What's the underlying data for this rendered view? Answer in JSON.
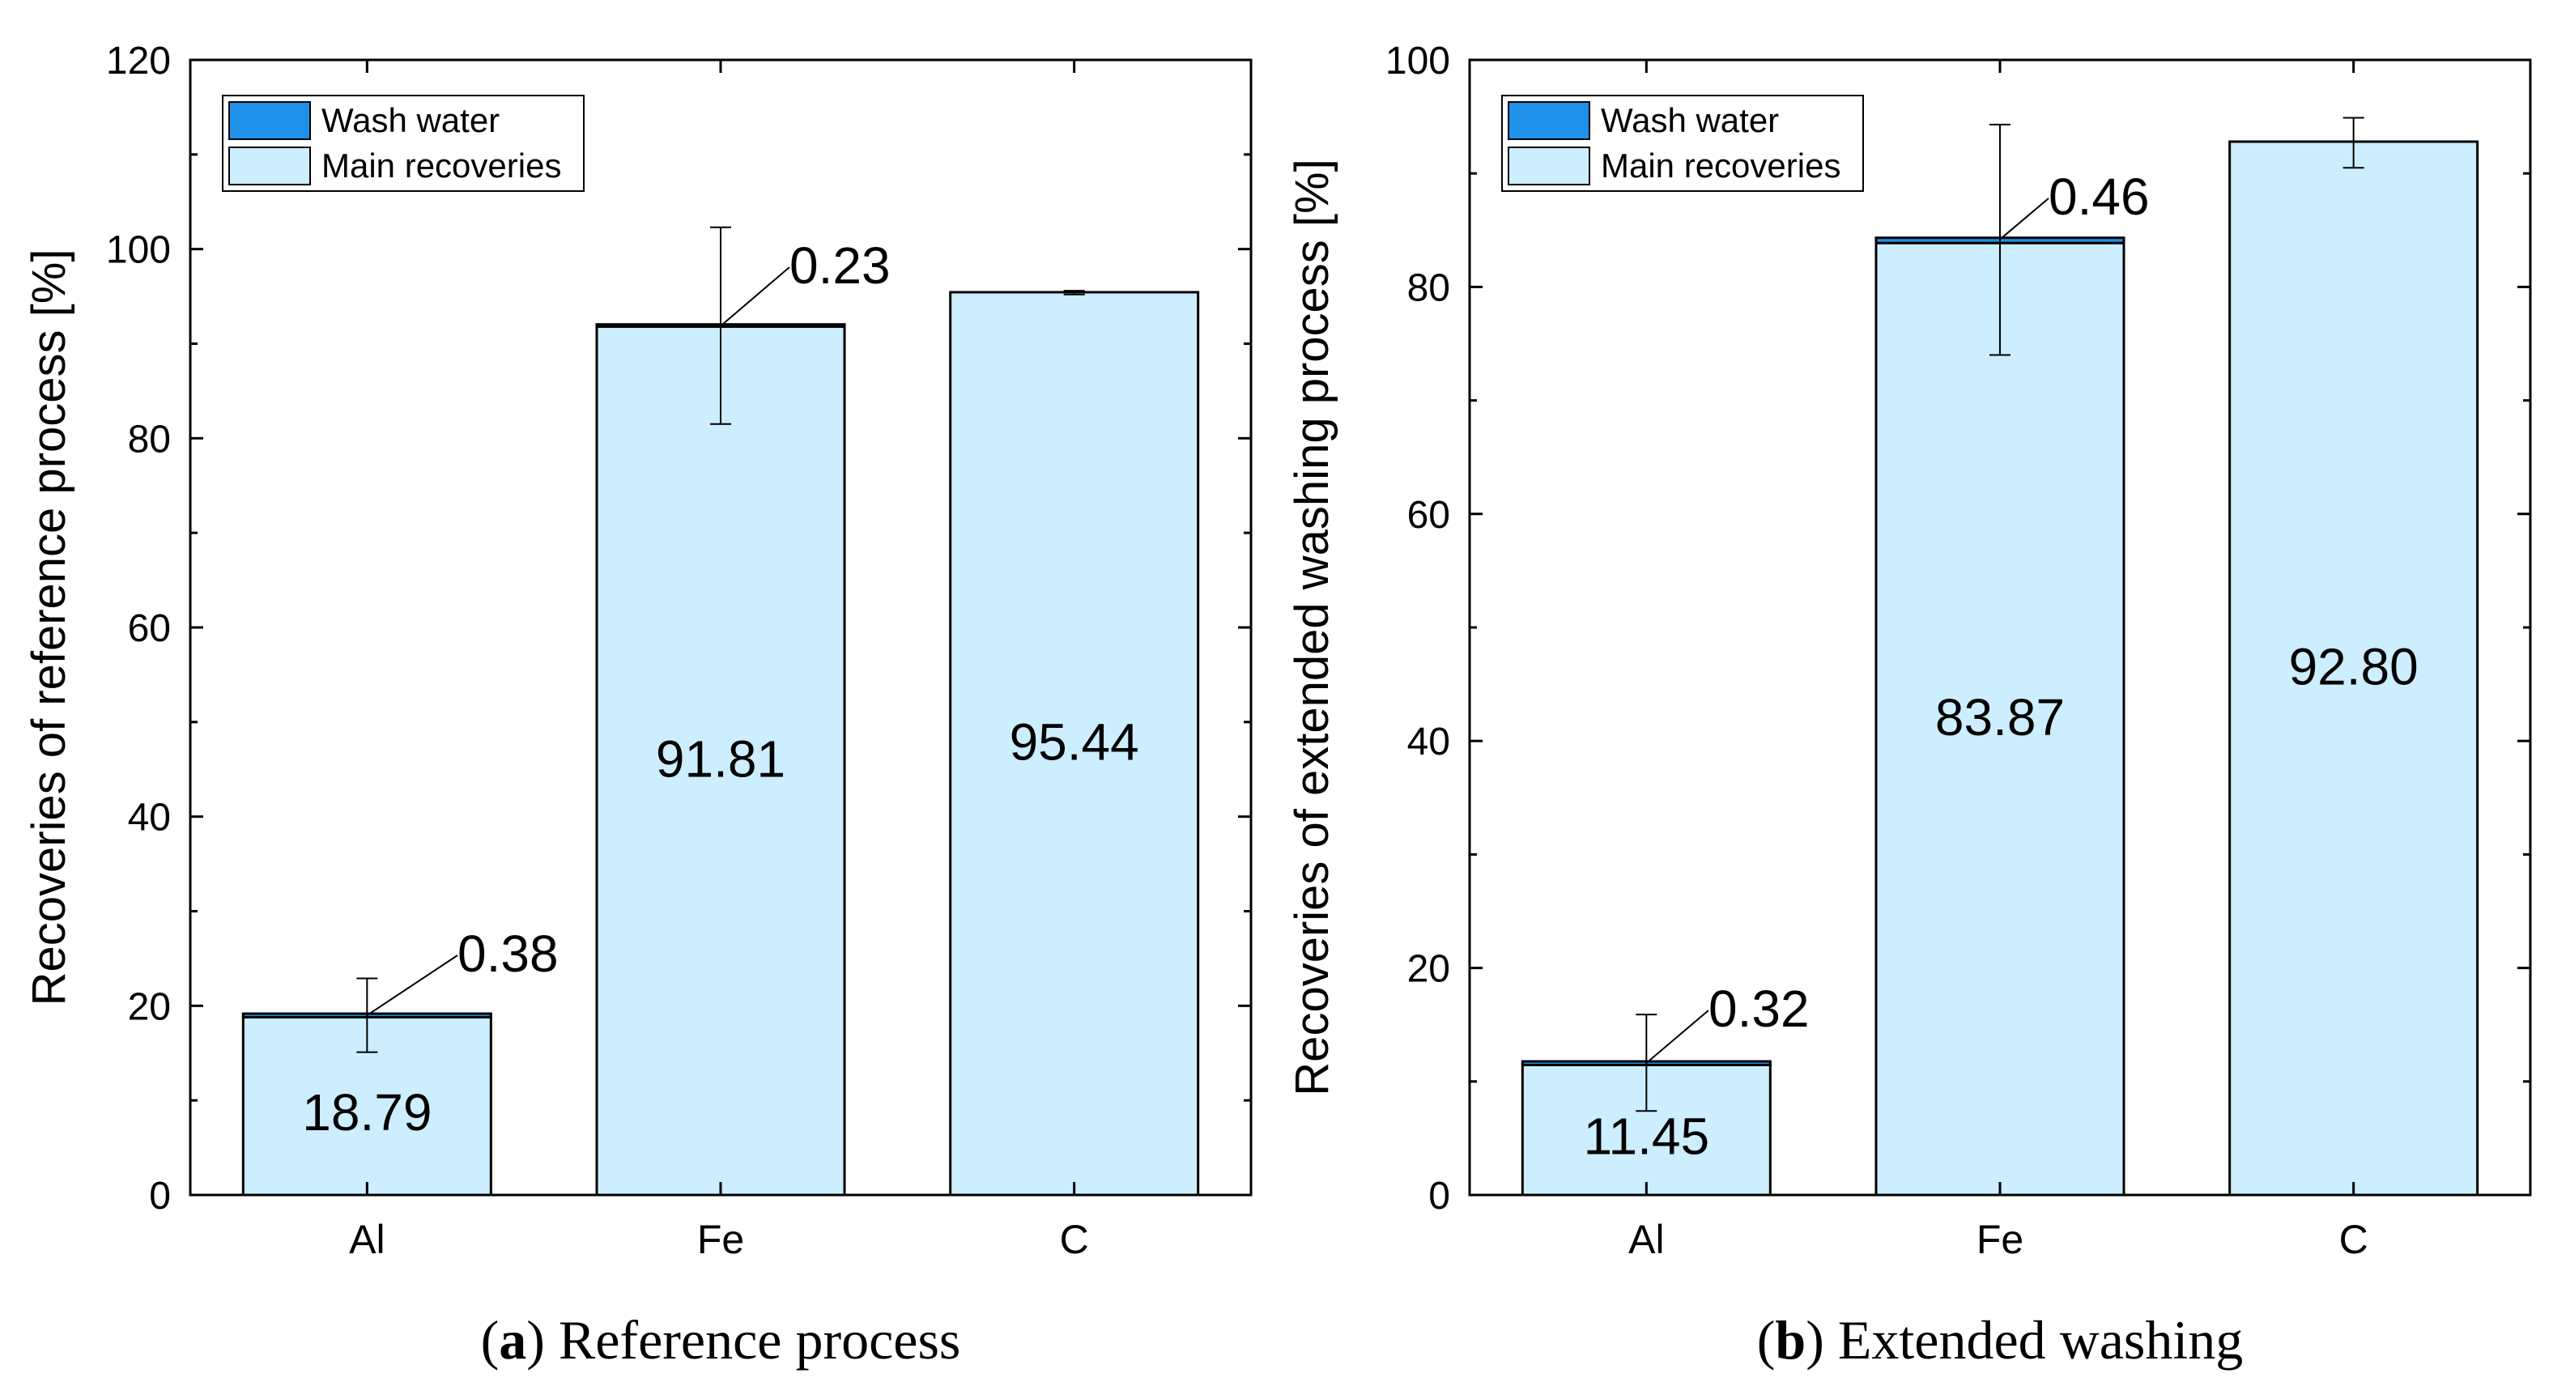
{
  "colors": {
    "wash_water": "#1E90E8",
    "main_recoveries": "#CCEEFF",
    "stroke": "#000000"
  },
  "legend": {
    "wash_water": "Wash water",
    "main_recoveries": "Main recoveries"
  },
  "chart_data": [
    {
      "type": "bar",
      "stacked": true,
      "caption_letter": "a",
      "caption_text": ") Reference process",
      "caption_paren": "(",
      "ylabel": "Recoveries of reference process [%]",
      "xlabel": "",
      "ylim": [
        0,
        120
      ],
      "yticks": [
        "0",
        "20",
        "40",
        "60",
        "80",
        "100",
        "120"
      ],
      "categories": [
        "Al",
        "Fe",
        "C"
      ],
      "series": [
        {
          "name": "Main recoveries",
          "values": [
            18.79,
            91.81,
            95.44
          ]
        },
        {
          "name": "Wash water",
          "values": [
            0.38,
            0.23,
            0.0
          ]
        }
      ],
      "error_center": [
        18.95,
        91.9,
        95.4
      ],
      "error_low": [
        15.1,
        81.5,
        95.2
      ],
      "error_high": [
        22.9,
        102.3,
        95.6
      ],
      "main_labels": [
        "18.79",
        "91.81",
        "95.44"
      ],
      "wash_labels": [
        "0.38",
        "0.23",
        ""
      ],
      "legend_position": "top-left"
    },
    {
      "type": "bar",
      "stacked": true,
      "caption_letter": "b",
      "caption_text": ") Extended washing",
      "caption_paren": "(",
      "ylabel": "Recoveries of extended washing process [%]",
      "xlabel": "",
      "ylim": [
        0,
        100
      ],
      "yticks": [
        "0",
        "20",
        "40",
        "60",
        "80",
        "100"
      ],
      "categories": [
        "Al",
        "Fe",
        "C"
      ],
      "series": [
        {
          "name": "Main recoveries",
          "values": [
            11.45,
            83.87,
            92.8
          ]
        },
        {
          "name": "Wash water",
          "values": [
            0.32,
            0.46,
            0.0
          ]
        }
      ],
      "error_center": [
        11.6,
        84.1,
        92.8
      ],
      "error_low": [
        7.4,
        74.0,
        90.5
      ],
      "error_high": [
        15.9,
        94.3,
        94.9
      ],
      "main_labels": [
        "11.45",
        "83.87",
        "92.80"
      ],
      "wash_labels": [
        "0.32",
        "0.46",
        ""
      ],
      "legend_position": "top-left"
    }
  ]
}
